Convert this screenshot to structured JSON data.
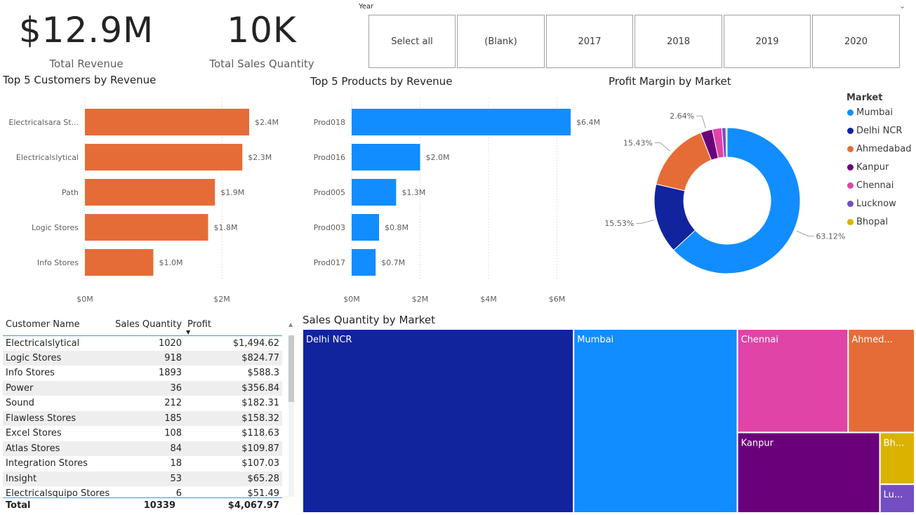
{
  "kpis": {
    "revenue_value": "$12.9M",
    "revenue_label": "Total Revenue",
    "quantity_value": "10K",
    "quantity_label": "Total Sales Quantity"
  },
  "year_slicer": {
    "title": "Year",
    "options": [
      "Select all",
      "(Blank)",
      "2017",
      "2018",
      "2019",
      "2020"
    ]
  },
  "table": {
    "headers": [
      "Customer Name",
      "Sales Quantity",
      "Profit"
    ],
    "rows": [
      [
        "Electricalslytical",
        "1020",
        "$1,494.62"
      ],
      [
        "Logic Stores",
        "918",
        "$824.77"
      ],
      [
        "Info Stores",
        "1893",
        "$588.3"
      ],
      [
        "Power",
        "36",
        "$356.84"
      ],
      [
        "Sound",
        "212",
        "$182.31"
      ],
      [
        "Flawless Stores",
        "185",
        "$158.32"
      ],
      [
        "Excel Stores",
        "108",
        "$118.63"
      ],
      [
        "Atlas Stores",
        "84",
        "$109.87"
      ],
      [
        "Integration Stores",
        "18",
        "$107.03"
      ],
      [
        "Insight",
        "53",
        "$65.28"
      ],
      [
        "Electricalsquipo Stores",
        "6",
        "$51.49"
      ]
    ],
    "total": [
      "Total",
      "10339",
      "$4,067.97"
    ]
  },
  "colors": {
    "customers_bar": "#e66c37",
    "products_bar": "#118dff",
    "markets": {
      "Mumbai": "#118dff",
      "Delhi NCR": "#12239e",
      "Ahmedabad": "#e66c37",
      "Kanpur": "#6b007b",
      "Chennai": "#e044a7",
      "Lucknow": "#744ec2",
      "Bhopal": "#d9b300"
    }
  },
  "chart_data": [
    {
      "type": "bar",
      "orientation": "horizontal",
      "title": "Top 5 Customers by Revenue",
      "categories": [
        "Electricalsara St...",
        "Electricalslytical",
        "Path",
        "Logic Stores",
        "Info Stores"
      ],
      "values": [
        2.4,
        2.3,
        1.9,
        1.8,
        1.0
      ],
      "value_labels": [
        "$2.4M",
        "$2.3M",
        "$1.9M",
        "$1.8M",
        "$1.0M"
      ],
      "xlim": [
        0,
        2.4
      ],
      "xticks": [
        0,
        2
      ],
      "xtick_labels": [
        "$0M",
        "$2M"
      ],
      "grid": true
    },
    {
      "type": "bar",
      "orientation": "horizontal",
      "title": "Top 5 Products by Revenue",
      "categories": [
        "Prod018",
        "Prod016",
        "Prod005",
        "Prod003",
        "Prod017"
      ],
      "values": [
        6.4,
        2.0,
        1.3,
        0.8,
        0.7
      ],
      "value_labels": [
        "$6.4M",
        "$2.0M",
        "$1.3M",
        "$0.8M",
        "$0.7M"
      ],
      "xlim": [
        0,
        6.4
      ],
      "xticks": [
        0,
        2,
        4,
        6
      ],
      "xtick_labels": [
        "$0M",
        "$2M",
        "$4M",
        "$6M"
      ],
      "grid": true
    },
    {
      "type": "pie",
      "subtype": "donut",
      "title": "Profit Margin by Market",
      "legend_title": "Market",
      "legend_position": "right",
      "categories": [
        "Mumbai",
        "Delhi NCR",
        "Ahmedabad",
        "Kanpur",
        "Chennai",
        "Lucknow",
        "Bhopal"
      ],
      "values": [
        63.12,
        15.53,
        15.43,
        2.64,
        2.1,
        0.9,
        0.28
      ],
      "data_labels": [
        "63.12%",
        "15.53%",
        "15.43%",
        "2.64%",
        "",
        "",
        ""
      ]
    },
    {
      "type": "treemap",
      "title": "Sales Quantity by Market",
      "categories": [
        "Delhi NCR",
        "Mumbai",
        "Chennai",
        "Ahmedabad",
        "Kanpur",
        "Bhopal",
        "Lucknow"
      ],
      "display_labels": [
        "Delhi NCR",
        "Mumbai",
        "Chennai",
        "Ahmed...",
        "Kanpur",
        "Bh...",
        "Lu..."
      ],
      "values": [
        4468,
        2700,
        1027,
        616,
        1027,
        161,
        89
      ]
    }
  ]
}
